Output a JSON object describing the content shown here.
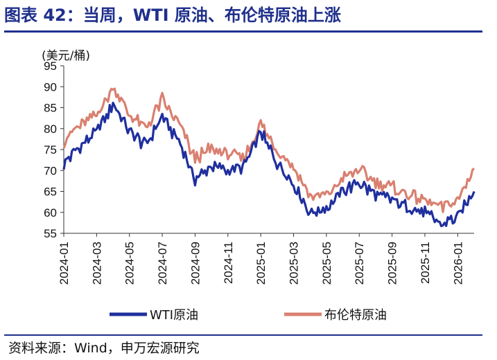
{
  "header": {
    "title": "图表 42：当周，WTI 原油、布伦特原油上涨"
  },
  "footer": {
    "source": "资料来源：Wind，申万宏源研究"
  },
  "chart_data": {
    "type": "line",
    "title": "当周，WTI 原油、布伦特原油上涨",
    "ylabel": "(美元/桶)",
    "xlabel": "",
    "ylim": [
      55,
      95
    ],
    "yticks": [
      55,
      60,
      65,
      70,
      75,
      80,
      85,
      90,
      95
    ],
    "xticks": [
      "2024-01",
      "2024-03",
      "2024-05",
      "2024-07",
      "2024-09",
      "2024-11",
      "2025-01",
      "2025-03",
      "2025-05",
      "2025-07",
      "2025-09",
      "2025-11",
      "2026-01"
    ],
    "x": [
      "2024-01",
      "2024-02",
      "2024-03",
      "2024-04",
      "2024-05",
      "2024-06",
      "2024-07",
      "2024-08",
      "2024-09",
      "2024-10",
      "2024-11",
      "2024-12",
      "2025-01",
      "2025-02",
      "2025-03",
      "2025-04",
      "2025-05",
      "2025-06",
      "2025-07",
      "2025-08",
      "2025-09",
      "2025-10",
      "2025-11",
      "2025-12",
      "2026-01",
      "2026-02"
    ],
    "series": [
      {
        "name": "WTI原油",
        "color": "#1f2f9e",
        "values": [
          71.5,
          76,
          79,
          86,
          79,
          76,
          83,
          77,
          68,
          71,
          70,
          71,
          79,
          72,
          67,
          60,
          61,
          65,
          67,
          64,
          63,
          61,
          60,
          57,
          59,
          65
        ]
      },
      {
        "name": "布伦特原油",
        "color": "#d98070",
        "values": [
          77,
          81,
          83,
          90,
          83,
          80,
          87,
          81,
          73,
          75,
          74,
          73,
          81,
          75,
          71,
          64,
          64,
          68,
          70,
          67,
          66,
          64,
          63,
          61,
          63,
          70.5
        ]
      }
    ],
    "legend": {
      "position": "bottom"
    }
  }
}
